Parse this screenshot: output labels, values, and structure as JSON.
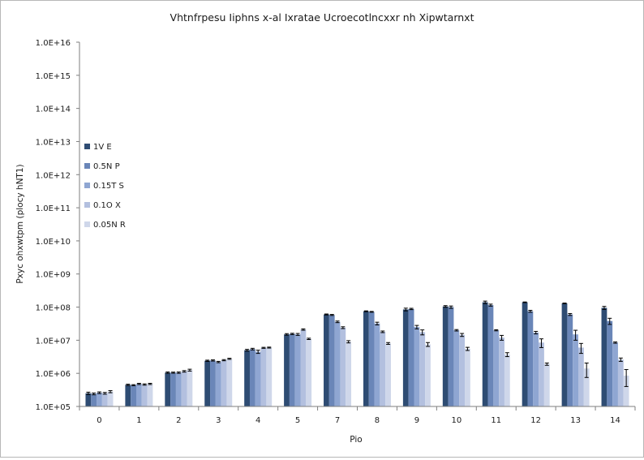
{
  "chart_data": {
    "type": "bar",
    "title": "Vhtnfrpesu Iiphns x-al Ixratae Ucroecotlncxxr nh Xipwtarnxt",
    "xlabel": "Pio",
    "ylabel": "Pxyc ohxwtpm (plocy hNT1)",
    "yscale": "log",
    "ylim": [
      100000,
      10000000000000000
    ],
    "ytick_labels": [
      "1.0E+05",
      "1.0E+06",
      "1.0E+07",
      "1.0E+08",
      "1.0E+09",
      "1.0E+10",
      "1.0E+11",
      "1.0E+12",
      "1.0E+13",
      "1.0E+14",
      "1.0E+15",
      "1.0E+16"
    ],
    "grid": false,
    "legend_position": "left",
    "categories": [
      "0",
      "1",
      "2",
      "3",
      "4",
      "5",
      "7",
      "8",
      "9",
      "10",
      "11",
      "12",
      "13",
      "14"
    ],
    "series": [
      {
        "name": "1V E",
        "color": "#2e4c73",
        "values": [
          250000,
          450000,
          1050000,
          2400000,
          5000000,
          15000000,
          60000000,
          75000000,
          85000000,
          105000000,
          140000000,
          140000000,
          130000000,
          95000000
        ],
        "errors": [
          20000,
          20000,
          50000,
          100000,
          300000,
          800000,
          2000000,
          2000000,
          8000000,
          6000000,
          12000000,
          3000000,
          3000000,
          10000000
        ]
      },
      {
        "name": "0.5N P",
        "color": "#6a86b8",
        "values": [
          240000,
          440000,
          1050000,
          2450000,
          5400000,
          15500000,
          58000000,
          72000000,
          88000000,
          100000000,
          115000000,
          75000000,
          60000000,
          38000000
        ],
        "errors": [
          15000,
          15000,
          40000,
          100000,
          300000,
          700000,
          2000000,
          2000000,
          4000000,
          8000000,
          8000000,
          5000000,
          4000000,
          8000000
        ]
      },
      {
        "name": "0.15T S",
        "color": "#8fa6d2",
        "values": [
          260000,
          480000,
          1050000,
          2200000,
          4500000,
          15000000,
          36000000,
          32000000,
          25000000,
          20000000,
          20000000,
          17000000,
          15000000,
          8500000
        ],
        "errors": [
          15000,
          20000,
          50000,
          100000,
          500000,
          1000000,
          2000000,
          3000000,
          3000000,
          1000000,
          800000,
          1500000,
          5000000,
          400000
        ]
      },
      {
        "name": "0.1O X",
        "color": "#b3c0df",
        "values": [
          250000,
          460000,
          1150000,
          2500000,
          5900000,
          21000000,
          24000000,
          18000000,
          17500000,
          14500000,
          12000000,
          8500000,
          6000000,
          2600000
        ],
        "errors": [
          15000,
          20000,
          60000,
          100000,
          200000,
          1000000,
          1500000,
          1000000,
          3000000,
          1500000,
          2000000,
          2500000,
          2000000,
          300000
        ]
      },
      {
        "name": "0.05N R",
        "color": "#cfd7ea",
        "values": [
          280000,
          480000,
          1250000,
          2750000,
          6000000,
          11000000,
          9000000,
          8000000,
          7500000,
          5500000,
          3700000,
          1900000,
          1400000,
          850000
        ],
        "errors": [
          20000,
          20000,
          80000,
          100000,
          200000,
          500000,
          700000,
          500000,
          1000000,
          600000,
          500000,
          150000,
          650000,
          450000
        ]
      }
    ]
  }
}
